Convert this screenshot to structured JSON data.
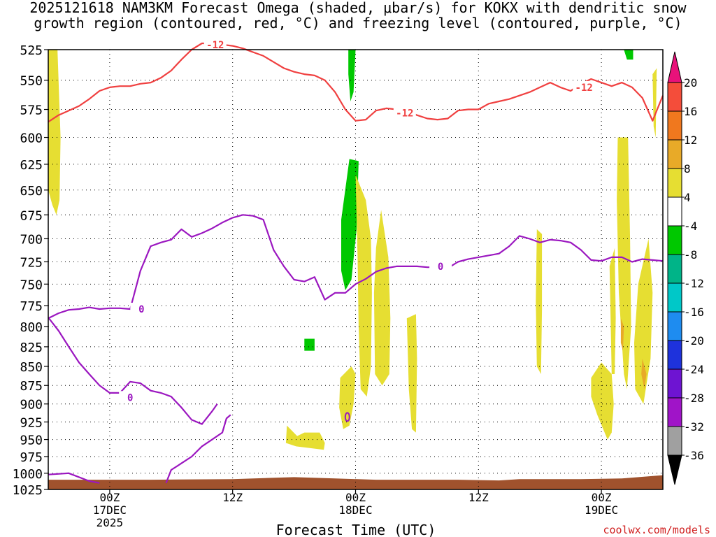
{
  "title_line1": "2025121618 NAM3KM Forecast Omega (shaded, μbar/s) for KOKX with dendritic snow",
  "title_line2": "growth region (contoured, red, °C) and freezing level (contoured, purple, °C)",
  "credit": "coolwx.com/models",
  "chart_data": {
    "type": "heatmap",
    "title": "2025121618 NAM3KM Forecast Omega (shaded, μbar/s) for KOKX with dendritic snow growth region (contoured, red, °C) and freezing level (contoured, purple, °C)",
    "xlabel": "Forecast Time (UTC)",
    "ylabel": "",
    "x_unit": "forecast hour from 2025-12-16 18Z",
    "xlim": [
      0,
      60
    ],
    "ylim": [
      1025,
      525
    ],
    "y_scale": "log",
    "x_ticks": [
      {
        "value": 6,
        "label": "00Z",
        "sub": "17DEC",
        "sub2": "2025"
      },
      {
        "value": 18,
        "label": "12Z",
        "sub": "",
        "sub2": ""
      },
      {
        "value": 30,
        "label": "00Z",
        "sub": "18DEC",
        "sub2": ""
      },
      {
        "value": 42,
        "label": "12Z",
        "sub": "",
        "sub2": ""
      },
      {
        "value": 54,
        "label": "00Z",
        "sub": "19DEC",
        "sub2": ""
      }
    ],
    "y_ticks": [
      525,
      550,
      575,
      600,
      625,
      650,
      675,
      700,
      725,
      750,
      775,
      800,
      825,
      850,
      875,
      900,
      925,
      950,
      975,
      1000,
      1025
    ],
    "grid": true,
    "colorbar": {
      "labels": [
        "20",
        "16",
        "12",
        "8",
        "4",
        "-4",
        "-8",
        "-12",
        "-16",
        "-20",
        "-24",
        "-28",
        "-32",
        "-36"
      ],
      "colors": [
        "#e8127a",
        "#f44d3a",
        "#f0781e",
        "#e8aa28",
        "#e6de32",
        "#ffffff",
        "#00c800",
        "#00b488",
        "#00c8c8",
        "#1e8cf0",
        "#1e32dc",
        "#6e14d2",
        "#a014c8",
        "#a0a0a0",
        "#000000"
      ]
    },
    "contour_labels": {
      "dgz": "-12",
      "freezing": "0"
    },
    "series": [
      {
        "name": "-12",
        "color": "#f04040",
        "field": "temperature_dgz_-12C",
        "x": [
          0,
          1,
          2,
          3,
          4,
          5,
          6,
          7,
          8,
          9,
          10,
          11,
          12,
          13,
          14,
          15,
          16,
          17,
          18,
          19,
          20,
          21,
          22,
          23,
          24,
          25,
          26,
          27,
          28,
          29,
          30,
          31,
          32,
          33,
          34,
          35,
          36,
          37,
          38,
          39,
          40,
          41,
          42,
          43,
          44,
          45,
          46,
          47,
          48,
          49,
          50,
          51,
          52,
          53,
          54,
          55,
          56,
          57,
          58,
          59,
          60
        ],
        "y": [
          586,
          580,
          576,
          572,
          566,
          559,
          556,
          555,
          555,
          553,
          552,
          548,
          542,
          533,
          525,
          520,
          520,
          521,
          522,
          524,
          527,
          530,
          535,
          540,
          543,
          545,
          546,
          550,
          560,
          575,
          585,
          584,
          576,
          574,
          575,
          576,
          580,
          583,
          584,
          583,
          576,
          575,
          575,
          570,
          568,
          566,
          563,
          560,
          556,
          552,
          556,
          559,
          553,
          549,
          552,
          555,
          552,
          556,
          565,
          585,
          563
        ]
      },
      {
        "name": "0",
        "color": "#9b17c0",
        "field": "freezing_level_0C",
        "x": [
          0,
          1,
          2,
          3,
          4,
          5,
          6,
          7,
          8,
          9,
          10,
          11,
          12,
          13,
          14,
          15,
          16,
          17,
          18,
          19,
          20,
          21,
          22,
          23,
          24,
          25,
          26,
          27,
          28,
          29,
          30,
          31,
          32,
          33,
          34,
          35,
          36,
          37,
          38,
          39,
          40,
          41,
          42,
          43,
          44,
          45,
          46,
          47,
          48,
          49,
          50,
          51,
          52,
          53,
          54,
          55,
          56,
          57,
          58,
          59,
          60
        ],
        "y": [
          790,
          784,
          780,
          779,
          777,
          779,
          778,
          778,
          779,
          735,
          708,
          704,
          701,
          690,
          698,
          694,
          689,
          683,
          678,
          675,
          676,
          680,
          712,
          730,
          745,
          747,
          742,
          768,
          760,
          760,
          750,
          744,
          736,
          732,
          730,
          730,
          730,
          731,
          731,
          732,
          725,
          722,
          720,
          718,
          716,
          708,
          697,
          700,
          704,
          701,
          702,
          704,
          712,
          723,
          724,
          720,
          720,
          725,
          722,
          723,
          724
        ]
      }
    ]
  }
}
